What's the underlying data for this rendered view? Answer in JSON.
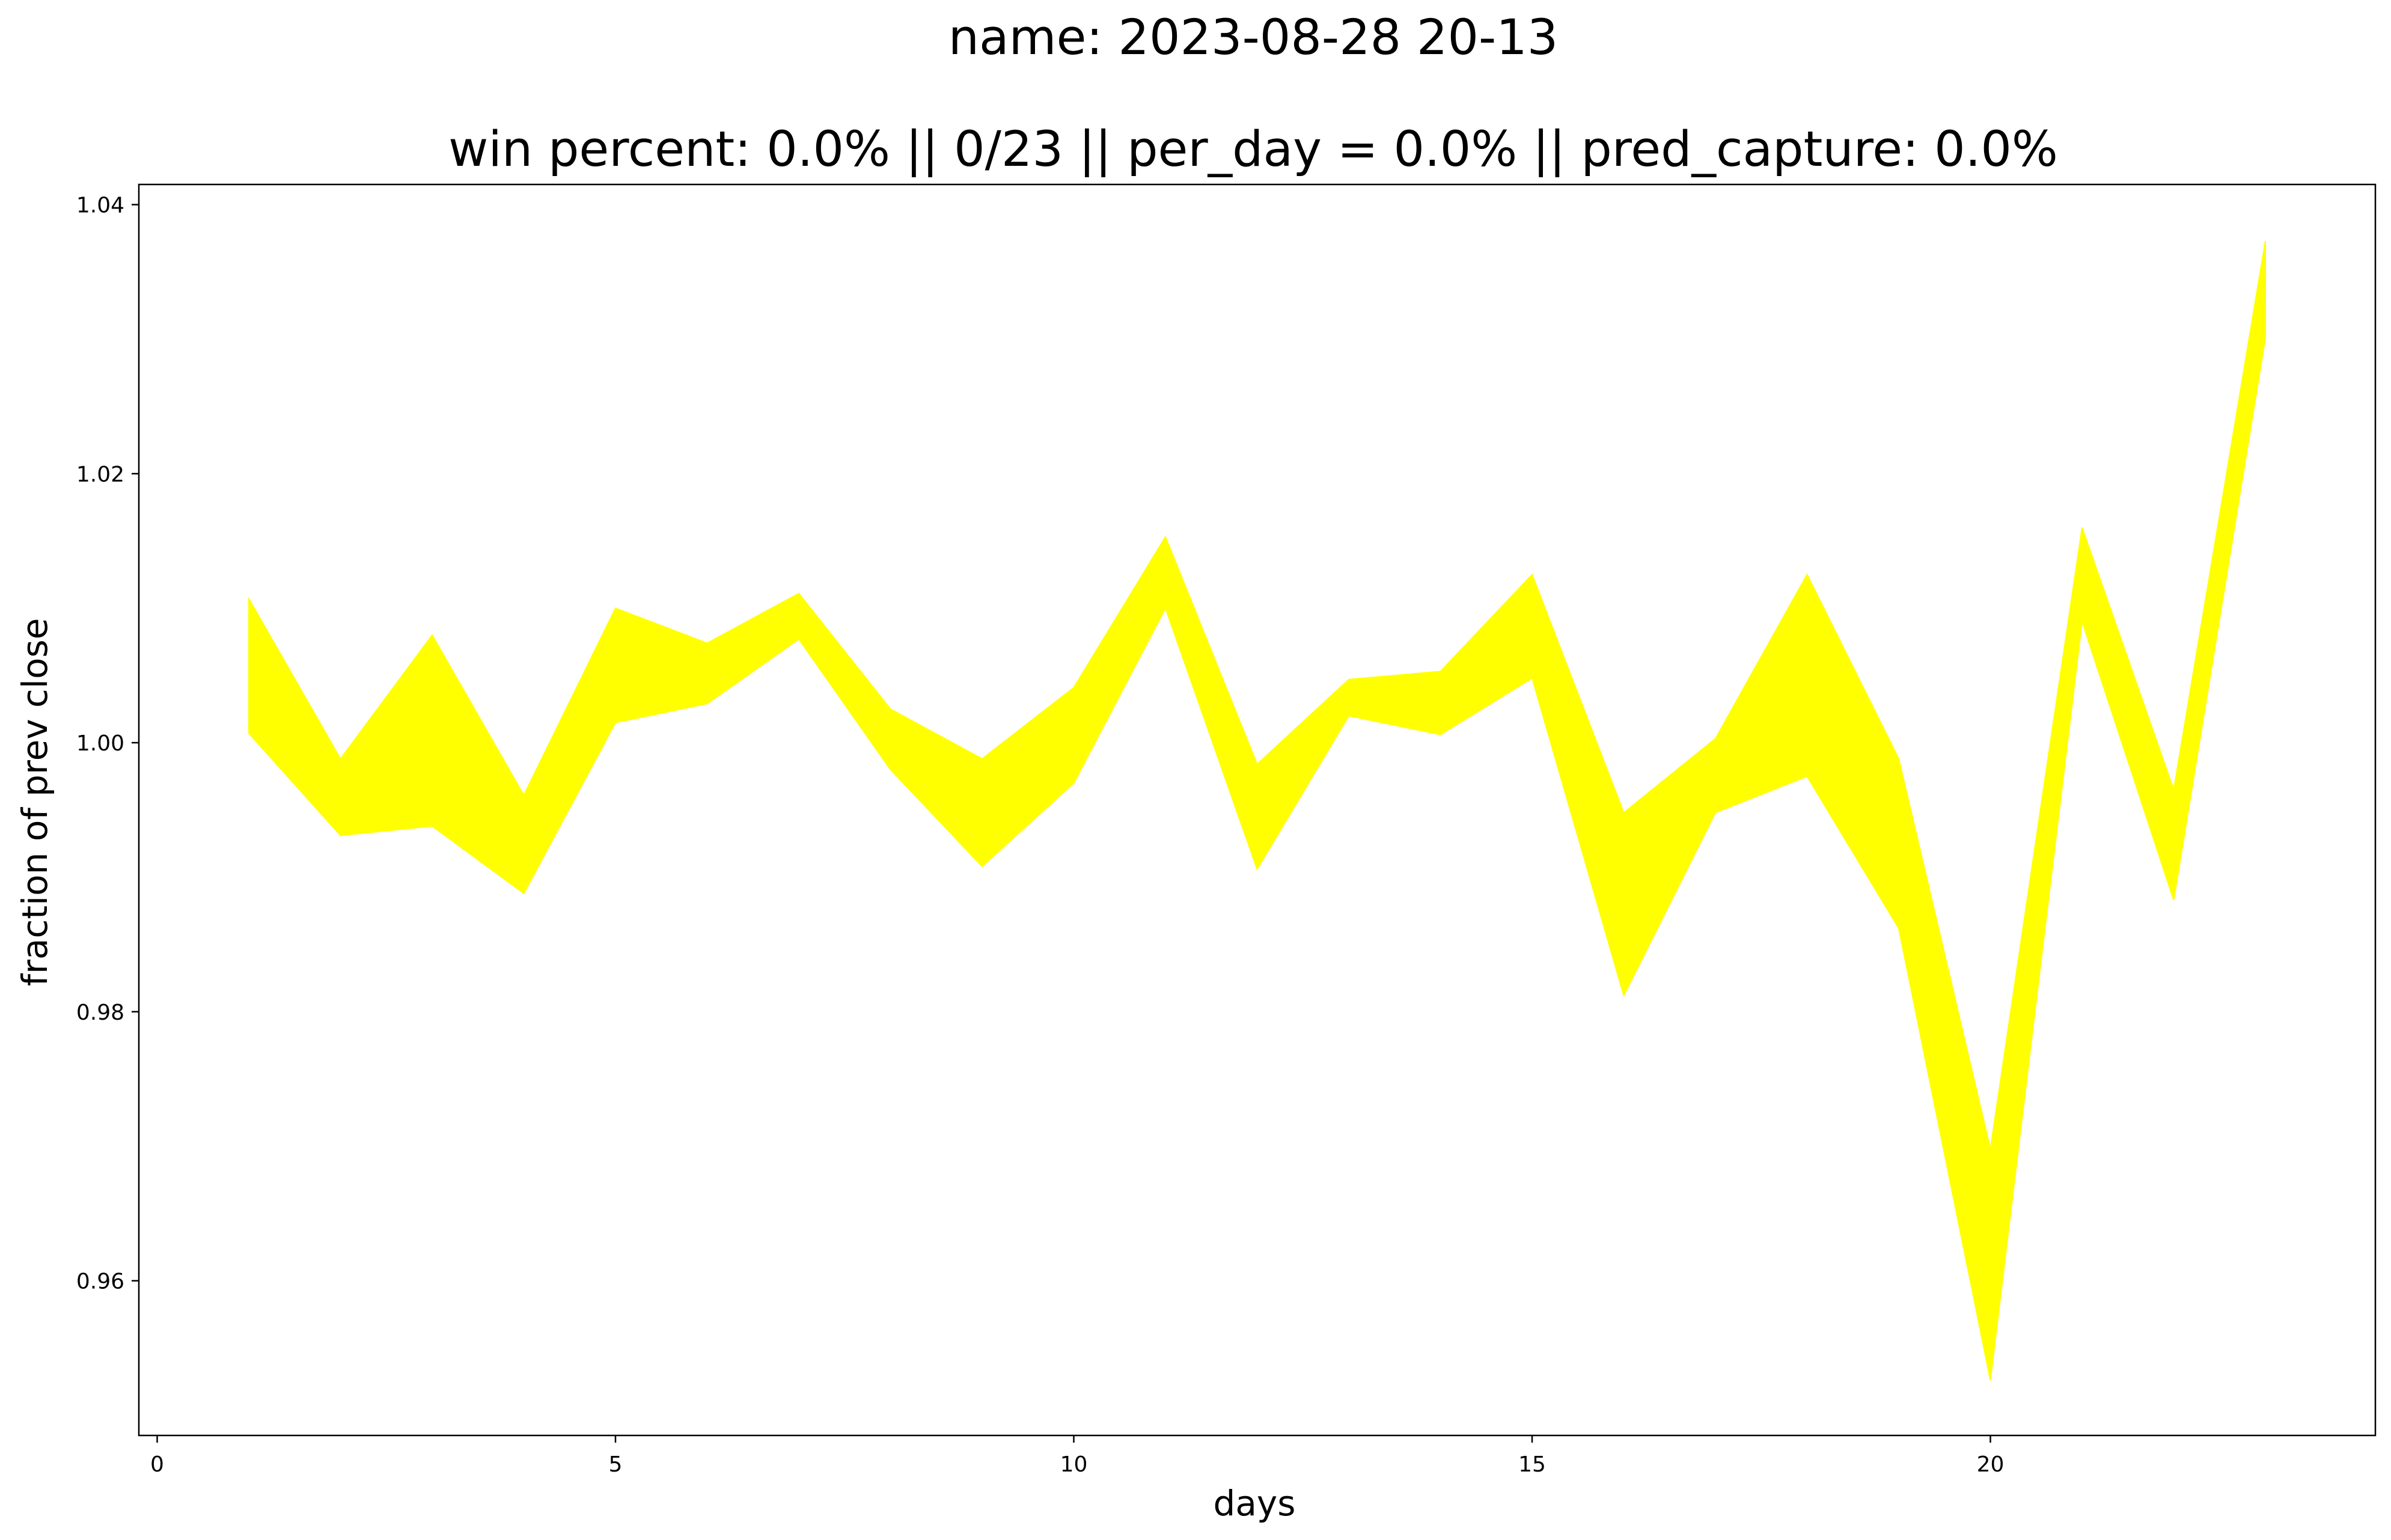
{
  "chart_data": {
    "type": "area",
    "title": "name: 2023-08-28 20-13",
    "subtitle": "win percent: 0.0%   ||  0/23  || per_day = 0.0% || pred_capture: 0.0%",
    "xlabel": "days",
    "ylabel": "fraction of prev close",
    "xlim": [
      -0.2,
      24.2
    ],
    "ylim": [
      0.9485,
      1.0415
    ],
    "xticks": [
      0,
      5,
      10,
      15,
      20
    ],
    "xtick_labels": [
      "0",
      "5",
      "10",
      "15",
      "20"
    ],
    "yticks": [
      0.96,
      0.98,
      1.0,
      1.02,
      1.04
    ],
    "ytick_labels": [
      "0.96",
      "0.98",
      "1.00",
      "1.02",
      "1.04"
    ],
    "grid": false,
    "fill_color": "#ffff00",
    "days": [
      1,
      2,
      3,
      4,
      5,
      6,
      7,
      8,
      9,
      10,
      11,
      12,
      13,
      14,
      15,
      16,
      17,
      18,
      19,
      20,
      21,
      22,
      23
    ],
    "upper": [
      1.0107,
      0.9988,
      1.008,
      0.9961,
      1.01,
      1.0074,
      1.0111,
      1.0025,
      0.9988,
      1.0041,
      1.0153,
      0.9984,
      1.0047,
      1.0053,
      1.0125,
      0.9948,
      1.0003,
      1.0125,
      0.9988,
      0.9698,
      1.016,
      0.9965,
      1.0373
    ],
    "lower": [
      1.0007,
      0.9931,
      0.9938,
      0.9888,
      1.0015,
      1.0029,
      1.0077,
      0.998,
      0.9908,
      0.997,
      1.01,
      0.9906,
      1.002,
      1.0006,
      1.0048,
      0.9812,
      0.9948,
      0.9975,
      0.9862,
      0.9526,
      1.009,
      0.9883,
      1.0301
    ]
  }
}
